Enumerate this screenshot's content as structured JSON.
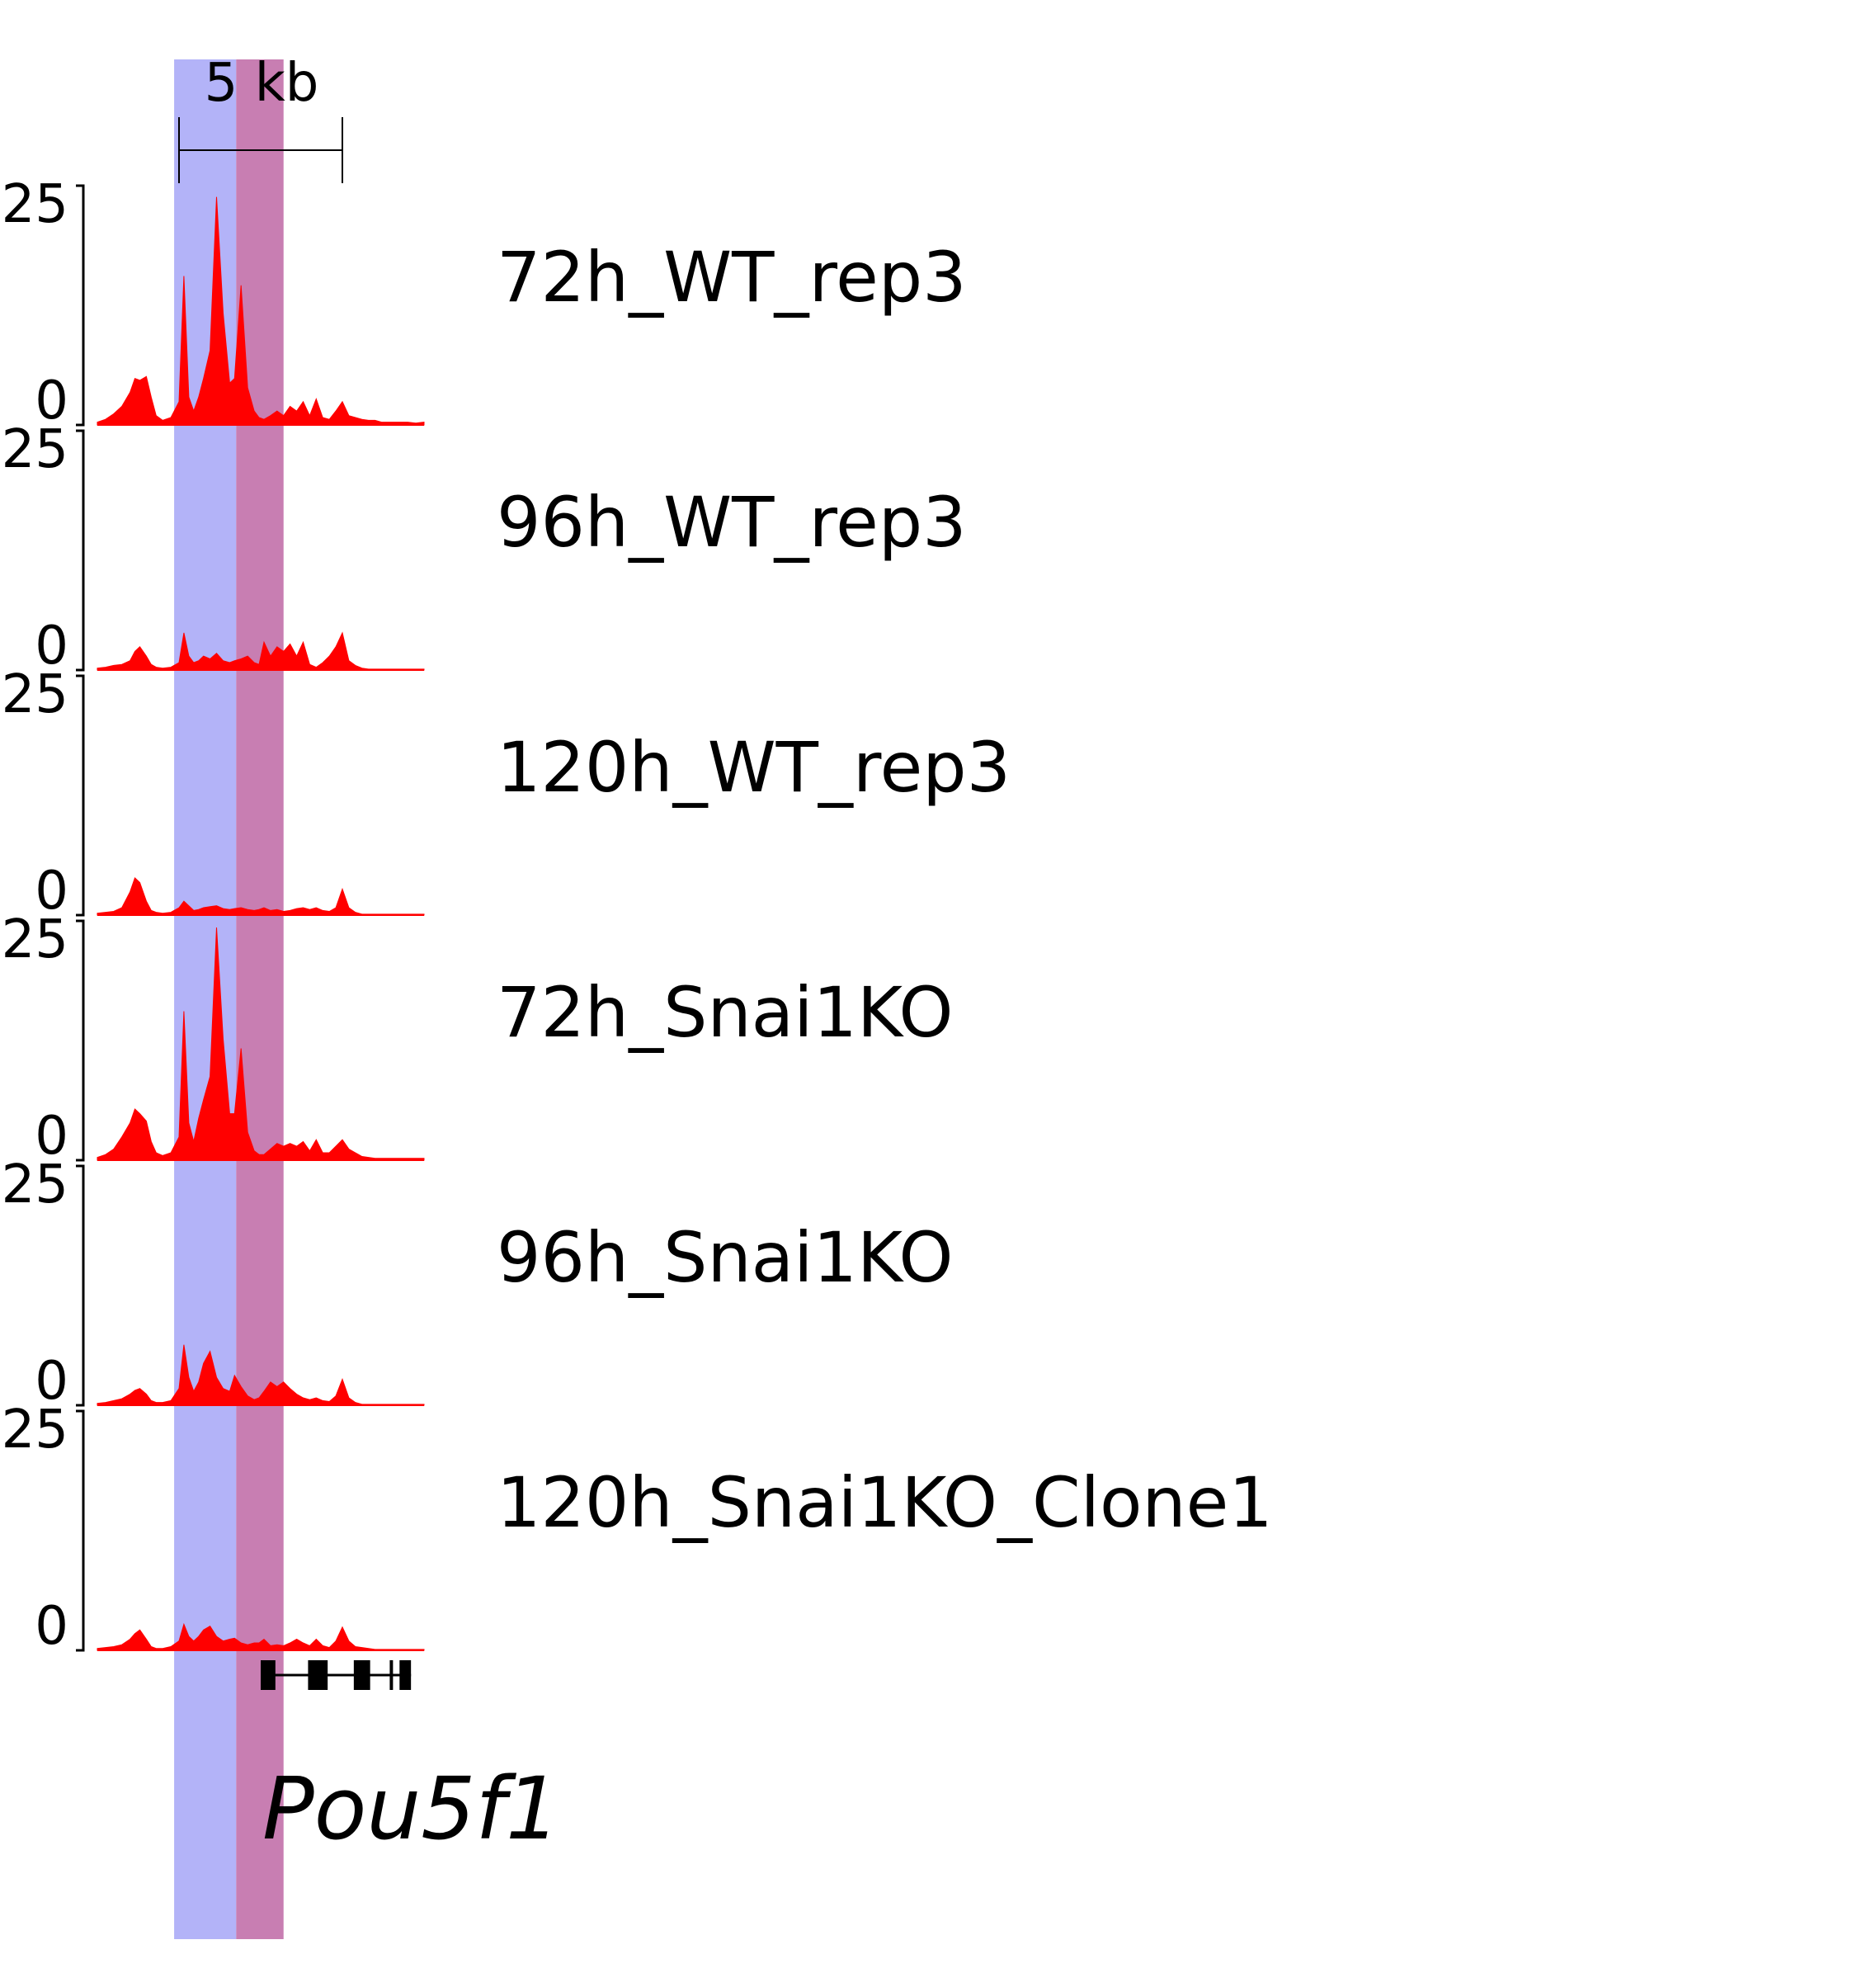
{
  "colors": {
    "signal": "#ff0000",
    "region_blue": "#b3b3f8",
    "region_mauve": "#c87eb2",
    "axis": "#000000"
  },
  "scale_bar": {
    "label": "5 kb"
  },
  "gene": {
    "name": "Pou5f1"
  },
  "chart_data": {
    "type": "area",
    "ylim": [
      0,
      25
    ],
    "tick_labels": [
      "25",
      "0"
    ],
    "x_domain_kb": [
      0,
      20
    ],
    "highlights_kb": [
      [
        4.7,
        8.5
      ],
      [
        8.5,
        11.4
      ]
    ],
    "scale_bar_kb": [
      5.0,
      15.0
    ],
    "gene_model": {
      "span_kb": [
        10.0,
        19.2
      ],
      "exons_kb": [
        [
          10.0,
          10.9
        ],
        [
          12.9,
          14.1
        ],
        [
          15.7,
          16.7
        ],
        [
          17.9,
          18.1
        ],
        [
          18.5,
          19.2
        ]
      ]
    },
    "x_kb": [
      0,
      0.5,
      1,
      1.5,
      2,
      2.3,
      2.6,
      3,
      3.3,
      3.6,
      4,
      4.5,
      5,
      5.3,
      5.6,
      5.9,
      6.2,
      6.5,
      6.9,
      7.3,
      7.7,
      8.1,
      8.4,
      8.8,
      9.2,
      9.6,
      9.9,
      10.2,
      10.6,
      11,
      11.4,
      11.8,
      12.2,
      12.6,
      13,
      13.4,
      13.8,
      14.2,
      14.6,
      15,
      15.4,
      15.8,
      16.2,
      16.6,
      17,
      17.4,
      17.8,
      18.2,
      18.6,
      19,
      19.5,
      20
    ],
    "series": [
      {
        "name": "72h_WT_rep3",
        "values": [
          0.3,
          0.6,
          1.2,
          2.0,
          3.5,
          5.0,
          4.8,
          5.2,
          3.0,
          1.0,
          0.5,
          0.8,
          2.5,
          16.0,
          3.0,
          1.5,
          3.0,
          5.0,
          8.0,
          24.5,
          12.0,
          4.5,
          5.0,
          15.0,
          4.0,
          1.5,
          0.8,
          0.6,
          1.0,
          1.5,
          1.0,
          2.0,
          1.5,
          2.5,
          1.0,
          2.8,
          0.8,
          0.6,
          1.5,
          2.5,
          1.0,
          0.8,
          0.6,
          0.5,
          0.5,
          0.3,
          0.3,
          0.3,
          0.3,
          0.3,
          0.2,
          0.3
        ]
      },
      {
        "name": "96h_WT_rep3",
        "values": [
          0.2,
          0.3,
          0.5,
          0.6,
          1.0,
          2.0,
          2.5,
          1.5,
          0.6,
          0.3,
          0.2,
          0.3,
          0.8,
          4.0,
          1.5,
          0.8,
          1.0,
          1.5,
          1.2,
          1.8,
          1.0,
          0.8,
          1.0,
          1.2,
          1.5,
          0.8,
          0.6,
          3.0,
          1.5,
          2.5,
          2.0,
          2.8,
          1.5,
          3.0,
          0.6,
          0.3,
          0.8,
          1.5,
          2.5,
          4.0,
          1.0,
          0.5,
          0.2,
          0.1,
          0.1,
          0.1,
          0.1,
          0.1,
          0.1,
          0.1,
          0.1,
          0.1
        ]
      },
      {
        "name": "120h_WT_rep3",
        "values": [
          0.2,
          0.3,
          0.4,
          0.8,
          2.5,
          4.0,
          3.5,
          1.5,
          0.5,
          0.3,
          0.2,
          0.3,
          0.8,
          1.5,
          1.0,
          0.5,
          0.6,
          0.8,
          0.9,
          1.0,
          0.7,
          0.6,
          0.7,
          0.8,
          0.6,
          0.5,
          0.6,
          0.8,
          0.5,
          0.6,
          0.4,
          0.5,
          0.7,
          0.8,
          0.6,
          0.8,
          0.5,
          0.4,
          0.8,
          2.8,
          0.8,
          0.3,
          0.1,
          0.1,
          0.1,
          0.1,
          0.1,
          0.1,
          0.1,
          0.1,
          0.1,
          0.1
        ]
      },
      {
        "name": "72h_Snai1KO",
        "values": [
          0.3,
          0.6,
          1.2,
          2.5,
          4.0,
          5.5,
          5.0,
          4.2,
          2.0,
          0.8,
          0.5,
          0.8,
          2.5,
          16.0,
          4.0,
          2.0,
          4.5,
          6.5,
          9.0,
          25.0,
          13.0,
          5.0,
          5.0,
          12.0,
          3.0,
          1.0,
          0.6,
          0.6,
          1.2,
          1.8,
          1.5,
          1.8,
          1.5,
          2.0,
          1.0,
          2.2,
          0.8,
          0.8,
          1.5,
          2.2,
          1.2,
          0.8,
          0.4,
          0.3,
          0.2,
          0.2,
          0.2,
          0.2,
          0.2,
          0.2,
          0.2,
          0.2
        ]
      },
      {
        "name": "96h_Snai1KO",
        "values": [
          0.2,
          0.3,
          0.5,
          0.7,
          1.2,
          1.6,
          1.8,
          1.2,
          0.5,
          0.3,
          0.3,
          0.5,
          1.8,
          6.5,
          3.0,
          1.5,
          2.5,
          4.5,
          5.8,
          3.0,
          1.8,
          1.5,
          3.2,
          2.0,
          1.0,
          0.6,
          0.8,
          1.5,
          2.5,
          2.0,
          2.5,
          1.8,
          1.2,
          0.8,
          0.6,
          0.8,
          0.5,
          0.4,
          1.0,
          2.8,
          0.8,
          0.3,
          0.1,
          0.1,
          0.1,
          0.1,
          0.1,
          0.1,
          0.1,
          0.1,
          0.1,
          0.1
        ]
      },
      {
        "name": "120h_Snai1KO_Clone1",
        "values": [
          0.2,
          0.3,
          0.4,
          0.6,
          1.2,
          1.8,
          2.2,
          1.2,
          0.4,
          0.2,
          0.2,
          0.4,
          1.0,
          2.8,
          1.5,
          1.0,
          1.5,
          2.2,
          2.6,
          1.5,
          1.0,
          1.2,
          1.3,
          0.8,
          0.6,
          0.8,
          0.8,
          1.2,
          0.5,
          0.6,
          0.5,
          0.8,
          1.2,
          0.8,
          0.5,
          1.2,
          0.5,
          0.3,
          1.0,
          2.5,
          1.0,
          0.4,
          0.3,
          0.2,
          0.1,
          0.1,
          0.1,
          0.1,
          0.1,
          0.1,
          0.1,
          0.1
        ]
      }
    ]
  }
}
